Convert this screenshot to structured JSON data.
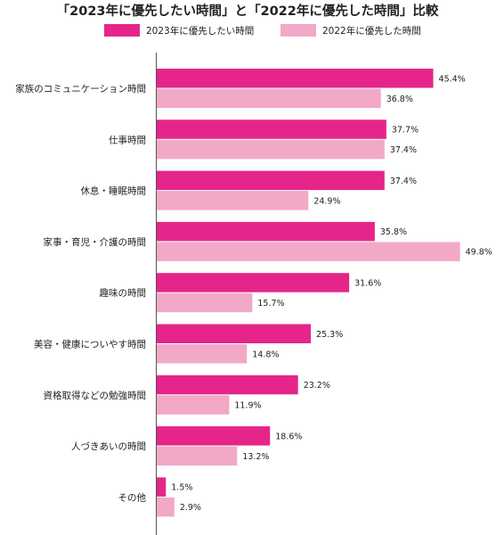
{
  "chart_data": {
    "type": "bar",
    "orientation": "horizontal",
    "title": "「2023年に優先したい時間」と「2022年に優先した時間」比較",
    "categories": [
      "家族のコミュニケーション時間",
      "仕事時間",
      "休息・睡眠時間",
      "家事・育児・介護の時間",
      "趣味の時間",
      "美容・健康についやす時間",
      "資格取得などの勉強時間",
      "人づきあいの時間",
      "その他"
    ],
    "series": [
      {
        "name": "2023年に優先したい時間",
        "color": "#e5258a",
        "values": [
          45.4,
          37.7,
          37.4,
          35.8,
          31.6,
          25.3,
          23.2,
          18.6,
          1.5
        ],
        "labels": [
          "45.4%",
          "37.7%",
          "37.4%",
          "35.8%",
          "31.6%",
          "25.3%",
          "23.2%",
          "18.6%",
          "1.5%"
        ]
      },
      {
        "name": "2022年に優先した時間",
        "color": "#f2a9c8",
        "values": [
          36.8,
          37.4,
          24.9,
          49.8,
          15.7,
          14.8,
          11.9,
          13.2,
          2.9
        ],
        "labels": [
          "36.8%",
          "37.4%",
          "24.9%",
          "49.8%",
          "15.7%",
          "14.8%",
          "11.9%",
          "13.2%",
          "2.9%"
        ]
      }
    ],
    "xlim": [
      0,
      50
    ],
    "grid": false,
    "legend_position": "top"
  }
}
